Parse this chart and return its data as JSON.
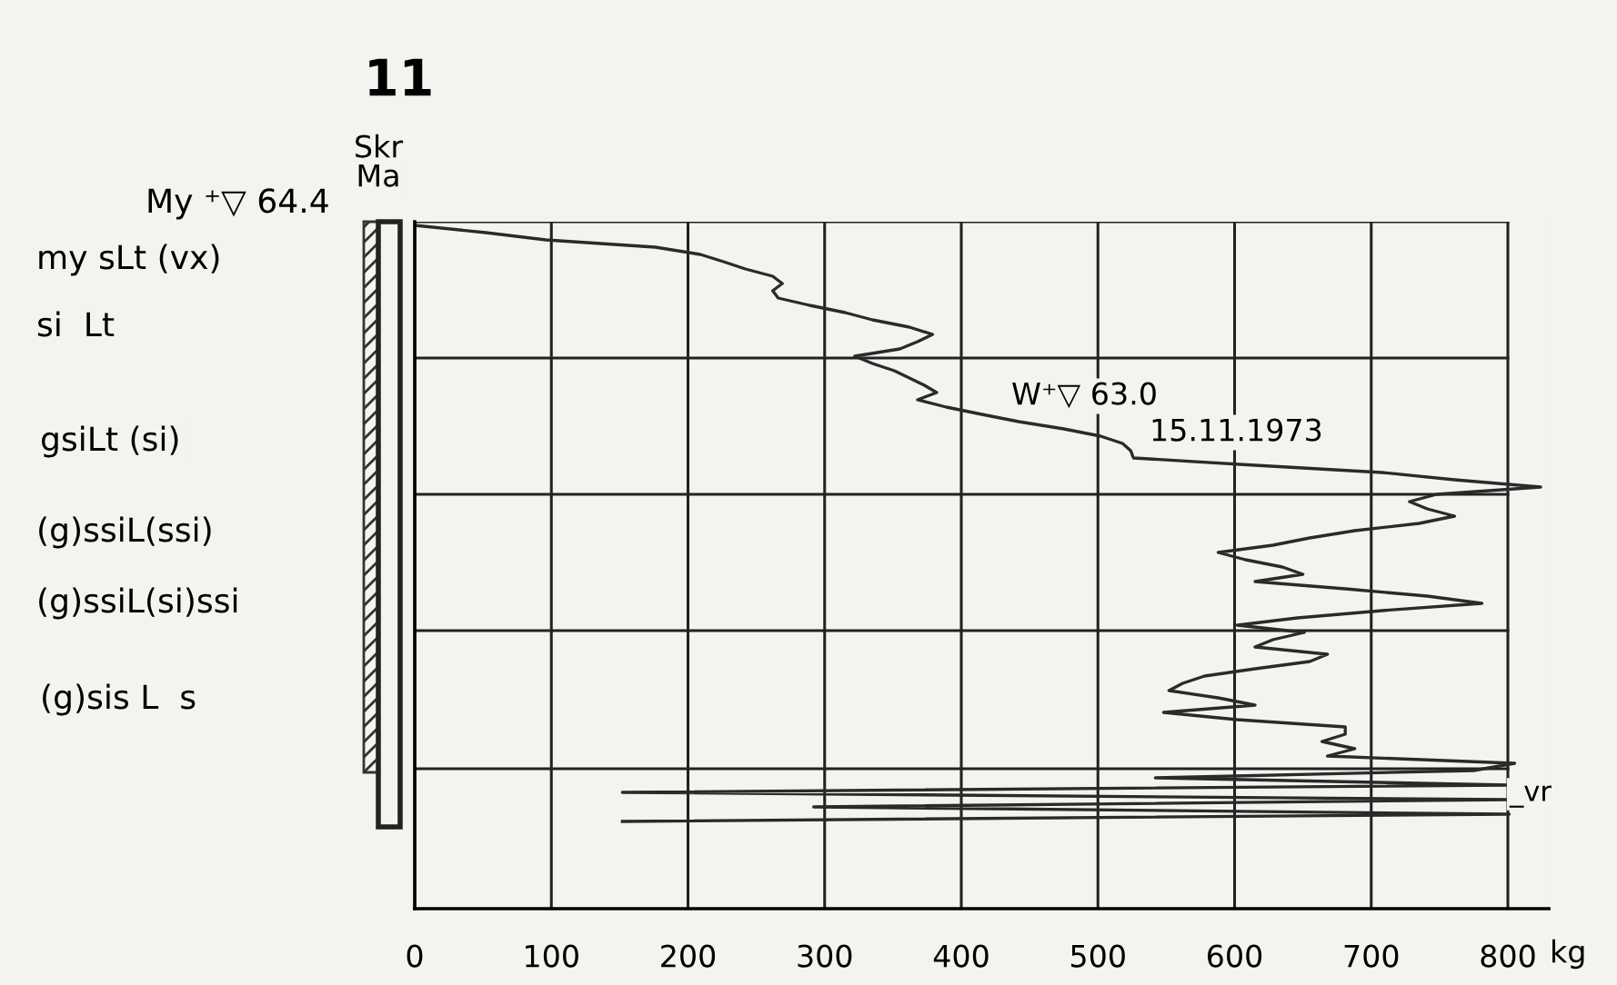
{
  "chart_data": {
    "type": "line",
    "orientation": "horizontal",
    "title": "11",
    "xlabel": "kg",
    "categories": [
      null,
      null,
      null,
      null,
      null,
      null,
      null,
      null,
      null,
      null,
      null,
      null,
      null,
      null,
      null,
      null,
      null,
      null,
      null,
      null,
      null,
      null,
      null,
      null,
      null,
      null,
      null,
      null,
      null,
      null,
      null,
      null,
      null,
      null,
      null,
      null,
      null,
      null,
      null,
      null,
      null,
      null,
      null,
      null,
      null,
      null,
      null,
      null,
      null,
      null,
      null,
      null,
      null,
      null,
      null,
      null,
      null,
      null,
      null,
      null,
      null,
      null,
      null,
      null,
      null,
      null,
      null,
      null,
      null,
      null,
      null,
      null,
      null,
      null,
      null,
      null,
      null,
      null,
      null,
      null,
      null,
      null,
      null
    ],
    "series": [
      {
        "color": "#2a2a2a",
        "values": [
          0,
          52,
          96,
          176,
          209,
          226,
          242,
          262,
          269,
          262,
          266,
          289,
          315,
          335,
          362,
          379,
          368,
          355,
          322,
          335,
          351,
          362,
          373,
          382,
          368,
          389,
          415,
          442,
          475,
          502,
          518,
          524,
          526,
          615,
          708,
          761,
          824,
          748,
          728,
          741,
          761,
          735,
          688,
          655,
          628,
          588,
          608,
          635,
          650,
          615,
          681,
          741,
          781,
          708,
          646,
          602,
          651,
          628,
          615,
          668,
          655,
          615,
          578,
          562,
          552,
          588,
          615,
          548,
          602,
          681,
          681,
          664,
          688,
          668,
          805,
          775,
          542,
          801,
          152,
          801,
          292,
          801,
          152
        ]
      }
    ],
    "xlim": [
      0,
      830
    ],
    "xticks": [
      0,
      100,
      200,
      300,
      400,
      500,
      600,
      700,
      800
    ],
    "tick_labels": "x",
    "grid": "x",
    "annotations": [
      "My ⁺▽ 64.4",
      "Skr",
      "Ma",
      "my sLt (vx)",
      "si  Lt",
      "gsiLt (si)",
      "(g)ssiL(ssi)",
      "(g)ssiL(si)ssi",
      "(g)sis L  s",
      "W⁺▽ 63.0",
      "15.11.1973",
      "_vr"
    ]
  }
}
